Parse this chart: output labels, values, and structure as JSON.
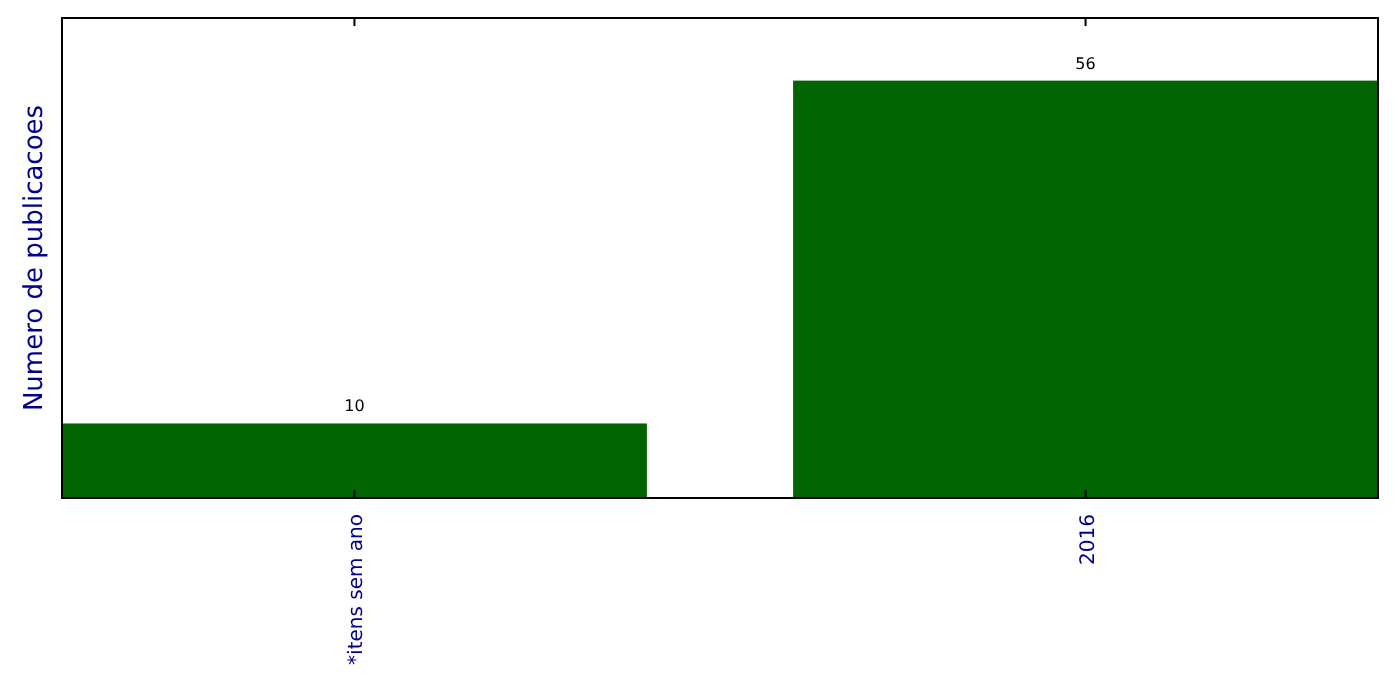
{
  "chart_data": {
    "type": "bar",
    "ylabel": "Numero de publicacoes",
    "categories": [
      "*itens sem ano",
      "2016"
    ],
    "values": [
      10,
      56
    ],
    "color": "#006400",
    "ylim": [
      0,
      64.4
    ],
    "tick_labels": "x",
    "data_labels": true
  }
}
